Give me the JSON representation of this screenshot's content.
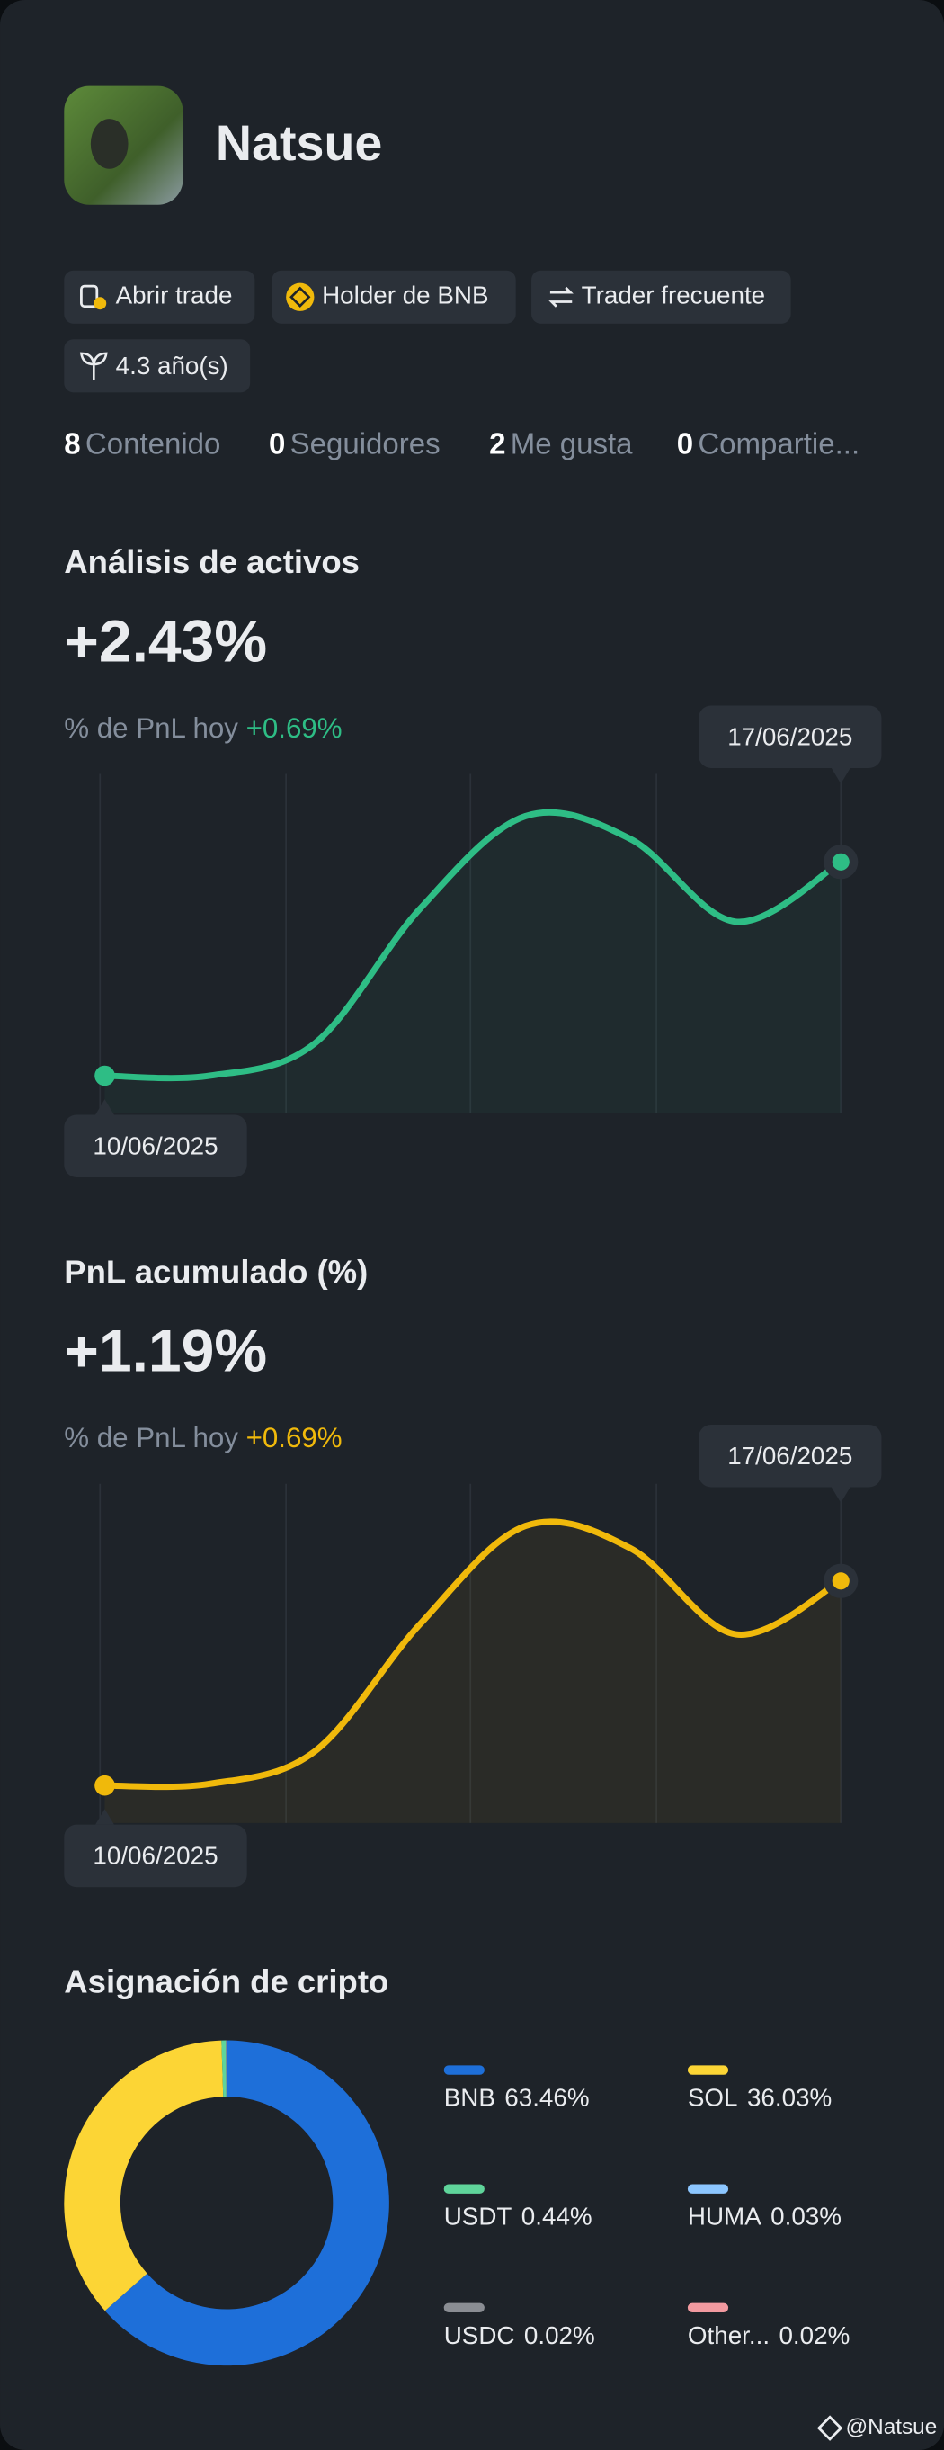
{
  "profile": {
    "name": "Natsue",
    "badges": [
      "Abrir trade",
      "Holder de BNB",
      "Trader frecuente",
      "4.3 año(s)"
    ],
    "stats": [
      {
        "value": 8,
        "label": "Contenido"
      },
      {
        "value": 0,
        "label": "Seguidores"
      },
      {
        "value": 2,
        "label": "Me gusta"
      },
      {
        "value": 0,
        "label": "Compartie..."
      }
    ]
  },
  "chart_data": [
    {
      "type": "line",
      "title": "Análisis de activos",
      "headline": "+2.43%",
      "subtitle": "% de PnL hoy",
      "today": "+0.69%",
      "categories": [
        "10/06/2025",
        null,
        null,
        null,
        null,
        null,
        null,
        "17/06/2025"
      ],
      "values": [
        0,
        0,
        0.37,
        1.9,
        2.95,
        2.69,
        1.75,
        2.43
      ],
      "color": "#2ebd85"
    },
    {
      "type": "line",
      "title": "PnL acumulado (%)",
      "headline": "+1.19%",
      "subtitle": "% de PnL hoy",
      "today": "+0.69%",
      "categories": [
        "10/06/2025",
        null,
        null,
        null,
        null,
        null,
        null,
        "17/06/2025"
      ],
      "values": [
        0,
        0.01,
        0.2,
        0.94,
        1.51,
        1.38,
        0.88,
        1.19
      ],
      "color": "#f0b90b"
    },
    {
      "type": "pie",
      "title": "Asignación de cripto",
      "categories": [
        "BNB",
        "SOL",
        "USDT",
        "HUMA",
        "USDC",
        "Other..."
      ],
      "values": [
        63.46,
        36.03,
        0.44,
        0.03,
        0.02,
        0.02
      ],
      "value_labels": [
        "63.46%",
        "36.03%",
        "0.44%",
        "0.03%",
        "0.02%",
        "0.02%"
      ],
      "colors": [
        "#1e6fd9",
        "#fcd535",
        "#5fd49a",
        "#8cc6ff",
        "#8a8d93",
        "#f29aa0"
      ]
    }
  ],
  "footer": "@Natsue"
}
